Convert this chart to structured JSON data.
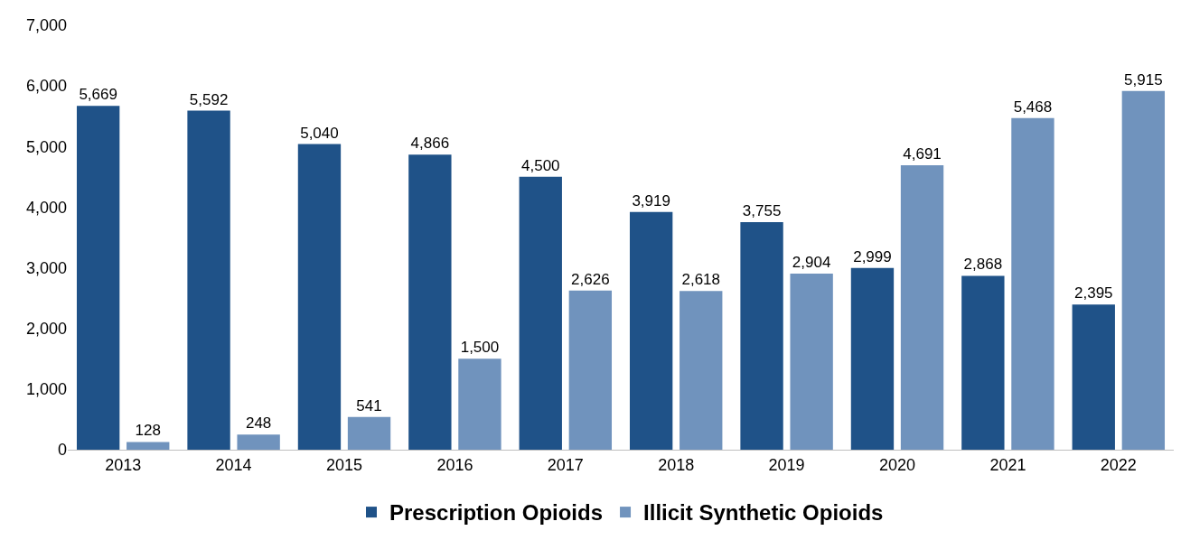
{
  "chart_data": {
    "type": "bar",
    "categories": [
      "2013",
      "2014",
      "2015",
      "2016",
      "2017",
      "2018",
      "2019",
      "2020",
      "2021",
      "2022"
    ],
    "series": [
      {
        "name": "Prescription Opioids",
        "color": "#1f5288",
        "values": [
          5669,
          5592,
          5040,
          4866,
          4500,
          3919,
          3755,
          2999,
          2868,
          2395
        ],
        "value_labels": [
          "5,669",
          "5,592",
          "5,040",
          "4,866",
          "4,500",
          "3,919",
          "3,755",
          "2,999",
          "2,868",
          "2,395"
        ]
      },
      {
        "name": "Illicit Synthetic Opioids",
        "color": "#7093bd",
        "values": [
          128,
          248,
          541,
          1500,
          2626,
          2618,
          2904,
          4691,
          5468,
          5915
        ],
        "value_labels": [
          "128",
          "248",
          "541",
          "1,500",
          "2,626",
          "2,618",
          "2,904",
          "4,691",
          "5,468",
          "5,915"
        ]
      }
    ],
    "ylim": [
      0,
      7000
    ],
    "yticks": [
      0,
      {
        "value": 1000,
        "label": "1,000"
      },
      {
        "value": 2000,
        "label": "2,000"
      },
      {
        "value": 3000,
        "label": "3,000"
      },
      {
        "value": 4000,
        "label": "4,000"
      },
      {
        "value": 5000,
        "label": "5,000"
      },
      {
        "value": 6000,
        "label": "6,000"
      },
      {
        "value": 7000,
        "label": "7,000"
      }
    ],
    "legend": "bottom"
  }
}
